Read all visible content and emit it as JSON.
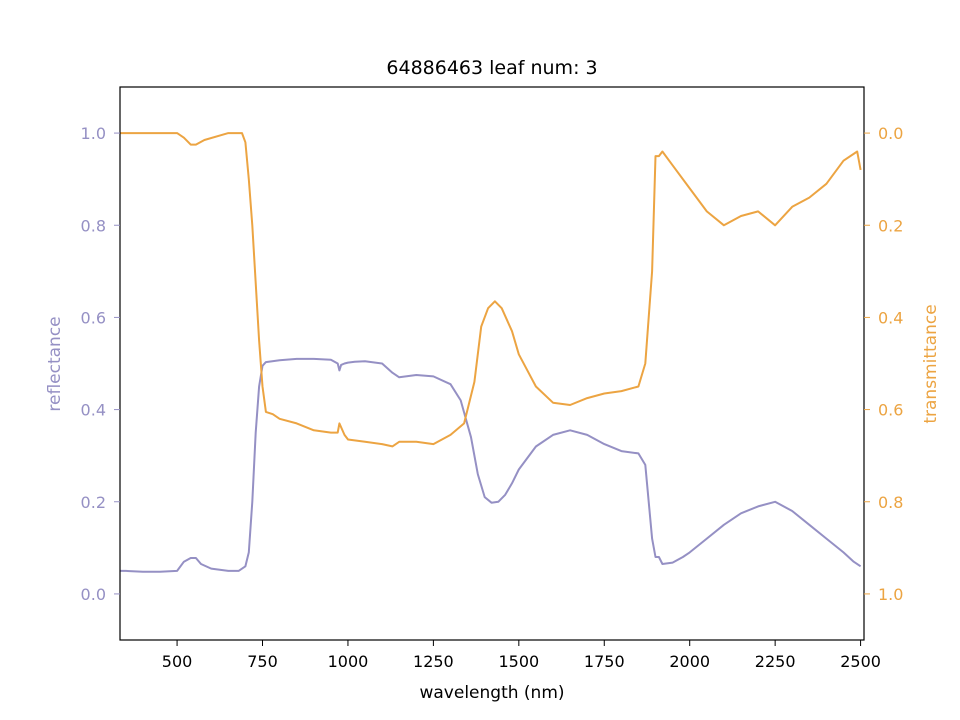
{
  "chart_data": {
    "type": "line",
    "title": "64886463 leaf num: 3",
    "xlabel": "wavelength (nm)",
    "ylabel_left": "reflectance",
    "ylabel_right": "transmittance",
    "xlim": [
      333,
      2510
    ],
    "ylim_left": [
      -0.1,
      1.1
    ],
    "ylim_right": [
      1.1,
      -0.1
    ],
    "right_axis_inverted": true,
    "grid": false,
    "x_ticks": [
      "500",
      "750",
      "1000",
      "1250",
      "1500",
      "1750",
      "2000",
      "2250",
      "2500"
    ],
    "y_left_ticks": [
      "0.0",
      "0.2",
      "0.4",
      "0.6",
      "0.8",
      "1.0"
    ],
    "y_right_ticks": [
      "0.0",
      "0.2",
      "0.4",
      "0.6",
      "0.8",
      "1.0"
    ],
    "colors": {
      "reflectance": "#9590c4",
      "transmittance": "#eca442",
      "axis": "#000000"
    },
    "series": [
      {
        "axis": "left",
        "x": [
          333,
          350,
          400,
          450,
          500,
          520,
          540,
          555,
          570,
          600,
          650,
          680,
          700,
          710,
          720,
          730,
          740,
          750,
          760,
          800,
          850,
          900,
          950,
          970,
          975,
          980,
          990,
          1000,
          1020,
          1050,
          1100,
          1130,
          1150,
          1200,
          1250,
          1300,
          1330,
          1360,
          1380,
          1400,
          1420,
          1440,
          1460,
          1480,
          1500,
          1550,
          1600,
          1650,
          1700,
          1750,
          1800,
          1850,
          1870,
          1890,
          1900,
          1910,
          1920,
          1950,
          1980,
          2000,
          2050,
          2100,
          2150,
          2200,
          2250,
          2300,
          2350,
          2400,
          2450,
          2480,
          2500
        ],
        "y": [
          0.05,
          0.05,
          0.048,
          0.048,
          0.05,
          0.07,
          0.078,
          0.078,
          0.065,
          0.055,
          0.05,
          0.05,
          0.06,
          0.09,
          0.2,
          0.35,
          0.45,
          0.495,
          0.503,
          0.507,
          0.51,
          0.51,
          0.508,
          0.5,
          0.485,
          0.497,
          0.5,
          0.502,
          0.504,
          0.505,
          0.5,
          0.48,
          0.47,
          0.475,
          0.472,
          0.455,
          0.42,
          0.34,
          0.26,
          0.21,
          0.198,
          0.2,
          0.215,
          0.24,
          0.27,
          0.32,
          0.345,
          0.355,
          0.345,
          0.325,
          0.31,
          0.305,
          0.28,
          0.12,
          0.08,
          0.08,
          0.065,
          0.068,
          0.08,
          0.09,
          0.12,
          0.15,
          0.175,
          0.19,
          0.2,
          0.18,
          0.15,
          0.12,
          0.09,
          0.07,
          0.06
        ]
      },
      {
        "axis": "right",
        "x": [
          333,
          350,
          400,
          450,
          500,
          520,
          540,
          555,
          580,
          650,
          690,
          700,
          710,
          720,
          740,
          750,
          760,
          780,
          800,
          850,
          900,
          950,
          970,
          975,
          990,
          1000,
          1050,
          1100,
          1130,
          1150,
          1200,
          1250,
          1300,
          1340,
          1370,
          1390,
          1410,
          1430,
          1450,
          1480,
          1500,
          1550,
          1600,
          1650,
          1700,
          1750,
          1800,
          1850,
          1870,
          1890,
          1900,
          1910,
          1920,
          1950,
          2000,
          2050,
          2100,
          2150,
          2200,
          2250,
          2300,
          2350,
          2400,
          2450,
          2490,
          2500
        ],
        "y": [
          0.0,
          0.0,
          0.0,
          0.0,
          0.0,
          0.01,
          0.025,
          0.025,
          0.015,
          0.0,
          0.0,
          0.02,
          0.1,
          0.2,
          0.45,
          0.55,
          0.605,
          0.61,
          0.62,
          0.63,
          0.645,
          0.65,
          0.65,
          0.63,
          0.655,
          0.665,
          0.67,
          0.675,
          0.68,
          0.67,
          0.67,
          0.675,
          0.655,
          0.63,
          0.54,
          0.42,
          0.38,
          0.365,
          0.38,
          0.43,
          0.48,
          0.55,
          0.585,
          0.59,
          0.575,
          0.565,
          0.56,
          0.55,
          0.5,
          0.3,
          0.05,
          0.05,
          0.04,
          0.07,
          0.12,
          0.17,
          0.2,
          0.18,
          0.17,
          0.2,
          0.16,
          0.14,
          0.11,
          0.06,
          0.04,
          0.08
        ]
      }
    ]
  }
}
